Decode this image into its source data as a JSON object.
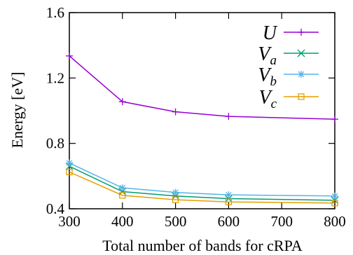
{
  "chart_data": {
    "type": "line",
    "title": "",
    "xlabel": "Total number of bands for cRPA",
    "ylabel": "Energy [eV]",
    "xlim": [
      300,
      800
    ],
    "ylim": [
      0.4,
      1.6
    ],
    "xticks": [
      "300",
      "400",
      "500",
      "600",
      "700",
      "800"
    ],
    "yticks": [
      "0.4",
      "0.8",
      "1.2",
      "1.6"
    ],
    "grid": false,
    "legend_position": "top-right",
    "x": [
      300,
      400,
      500,
      600,
      800
    ],
    "series": [
      {
        "name": "U",
        "sub": "",
        "color": "#9400d3",
        "marker": "plus",
        "values": [
          1.335,
          1.055,
          0.993,
          0.965,
          0.948
        ]
      },
      {
        "name": "V",
        "sub": "a",
        "color": "#009e73",
        "marker": "cross",
        "values": [
          0.66,
          0.505,
          0.478,
          0.462,
          0.452
        ]
      },
      {
        "name": "V",
        "sub": "b",
        "color": "#56b4e9",
        "marker": "star",
        "values": [
          0.68,
          0.528,
          0.5,
          0.485,
          0.478
        ]
      },
      {
        "name": "V",
        "sub": "c",
        "color": "#e69f00",
        "marker": "square",
        "values": [
          0.625,
          0.482,
          0.455,
          0.442,
          0.435
        ]
      }
    ]
  }
}
